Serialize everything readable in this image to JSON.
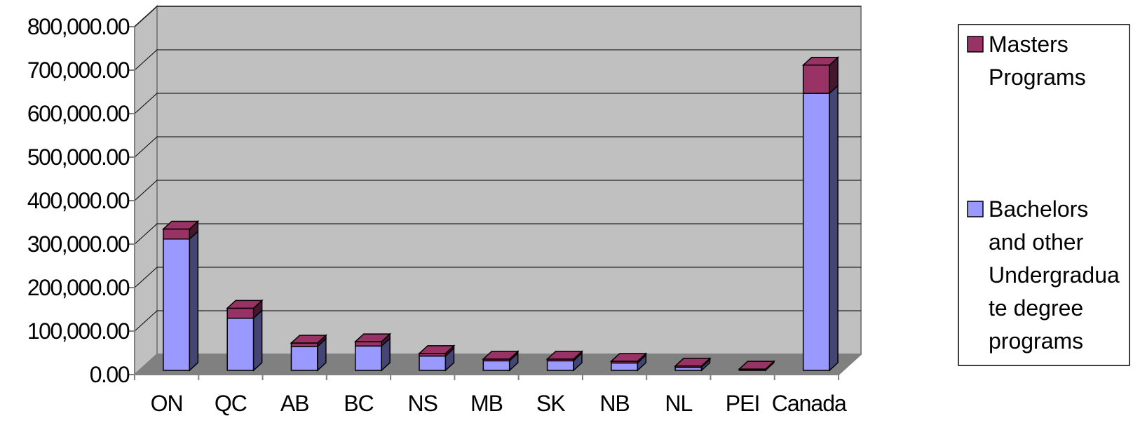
{
  "chart_data": {
    "type": "bar",
    "stacked": true,
    "three_d": true,
    "categories": [
      "ON",
      "QC",
      "AB",
      "BC",
      "NS",
      "MB",
      "SK",
      "NB",
      "NL",
      "PEI",
      "Canada"
    ],
    "series": [
      {
        "name": "Bachelors and other Undergraduate degree programs",
        "legend_lines": [
          "Bachelors",
          "and other",
          "Undergradua",
          "te degree",
          "programs"
        ],
        "color": "#9999ff",
        "values": [
          302000,
          120000,
          55000,
          56000,
          33000,
          22000,
          22000,
          17000,
          7000,
          1000,
          637000
        ]
      },
      {
        "name": "Masters Programs",
        "legend_lines": [
          "Masters",
          "Programs"
        ],
        "color": "#993366",
        "values": [
          23000,
          23000,
          8000,
          10000,
          6000,
          4000,
          4000,
          4000,
          3000,
          2000,
          65000
        ]
      }
    ],
    "ylim": [
      0,
      800000
    ],
    "yticks": [
      "0.00",
      "100,000.00",
      "200,000.00",
      "300,000.00",
      "400,000.00",
      "500,000.00",
      "600,000.00",
      "700,000.00",
      "800,000.00"
    ],
    "title": "",
    "xlabel": "",
    "ylabel": "",
    "grid": true,
    "legend_position": "right",
    "wall_color": "#c0c0c0",
    "floor_color": "#808080"
  }
}
